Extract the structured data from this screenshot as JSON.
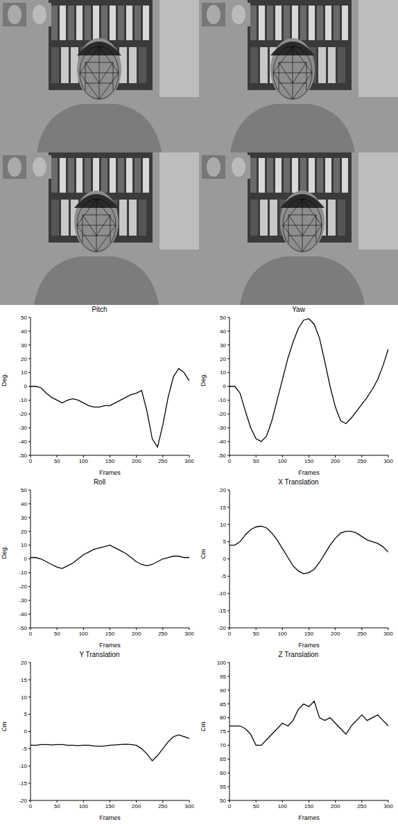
{
  "chart_data": [
    {
      "type": "line",
      "title": "Pitch",
      "x_label": "Frames",
      "y_label": "Deg.",
      "xlim": [
        0,
        300
      ],
      "xticks": [
        0,
        50,
        100,
        150,
        200,
        250,
        300
      ],
      "ylim": [
        -50,
        50
      ],
      "yticks": [
        -50,
        -40,
        -30,
        -20,
        -10,
        0,
        10,
        20,
        30,
        40,
        50
      ],
      "grid": false,
      "color": "#000000",
      "x": [
        0,
        10,
        20,
        30,
        40,
        50,
        60,
        70,
        80,
        90,
        100,
        110,
        120,
        130,
        140,
        150,
        160,
        170,
        180,
        190,
        200,
        210,
        220,
        230,
        240,
        250,
        260,
        270,
        280,
        290,
        300
      ],
      "values": [
        0,
        0,
        -1,
        -5,
        -8,
        -10,
        -12,
        -10,
        -9,
        -10,
        -12,
        -14,
        -15,
        -15,
        -14,
        -14,
        -12,
        -10,
        -8,
        -6,
        -5,
        -3,
        -18,
        -38,
        -44,
        -28,
        -8,
        7,
        13,
        10,
        4
      ]
    },
    {
      "type": "line",
      "title": "Yaw",
      "x_label": "Frames",
      "y_label": "Deg.",
      "xlim": [
        0,
        300
      ],
      "xticks": [
        0,
        50,
        100,
        150,
        200,
        250,
        300
      ],
      "ylim": [
        -50,
        50
      ],
      "yticks": [
        -50,
        -40,
        -30,
        -20,
        -10,
        0,
        10,
        20,
        30,
        40,
        50
      ],
      "grid": false,
      "color": "#000000",
      "x": [
        0,
        10,
        20,
        30,
        40,
        50,
        60,
        70,
        80,
        90,
        100,
        110,
        120,
        130,
        140,
        150,
        160,
        170,
        180,
        190,
        200,
        210,
        220,
        230,
        240,
        250,
        260,
        270,
        280,
        290,
        300
      ],
      "values": [
        0,
        0,
        -5,
        -18,
        -30,
        -38,
        -40,
        -36,
        -25,
        -10,
        5,
        20,
        32,
        42,
        48,
        49,
        45,
        35,
        18,
        0,
        -15,
        -25,
        -27,
        -23,
        -18,
        -13,
        -8,
        -2,
        5,
        15,
        27
      ]
    },
    {
      "type": "line",
      "title": "Roll",
      "x_label": "Frames",
      "y_label": "Deg.",
      "xlim": [
        0,
        300
      ],
      "xticks": [
        0,
        50,
        100,
        150,
        200,
        250,
        300
      ],
      "ylim": [
        -50,
        50
      ],
      "yticks": [
        -50,
        -40,
        -30,
        -20,
        -10,
        0,
        10,
        20,
        30,
        40,
        50
      ],
      "grid": false,
      "color": "#000000",
      "x": [
        0,
        10,
        20,
        30,
        40,
        50,
        60,
        70,
        80,
        90,
        100,
        110,
        120,
        130,
        140,
        150,
        160,
        170,
        180,
        190,
        200,
        210,
        220,
        230,
        240,
        250,
        260,
        270,
        280,
        290,
        300
      ],
      "values": [
        1,
        1,
        0,
        -2,
        -4,
        -6,
        -7,
        -5,
        -3,
        0,
        3,
        5,
        7,
        8,
        9,
        10,
        8,
        6,
        4,
        1,
        -2,
        -4,
        -5,
        -4,
        -2,
        0,
        1,
        2,
        2,
        1,
        1
      ]
    },
    {
      "type": "line",
      "title": "X Translation",
      "x_label": "Frames",
      "y_label": "Cm",
      "xlim": [
        0,
        300
      ],
      "xticks": [
        0,
        50,
        100,
        150,
        200,
        250,
        300
      ],
      "ylim": [
        -20,
        20
      ],
      "yticks": [
        -20,
        -15,
        -10,
        -5,
        0,
        5,
        10,
        15,
        20
      ],
      "grid": false,
      "color": "#000000",
      "x": [
        0,
        10,
        20,
        30,
        40,
        50,
        60,
        70,
        80,
        90,
        100,
        110,
        120,
        130,
        140,
        150,
        160,
        170,
        180,
        190,
        200,
        210,
        220,
        230,
        240,
        250,
        260,
        270,
        280,
        290,
        300
      ],
      "values": [
        4,
        4,
        5,
        7,
        8.5,
        9.3,
        9.5,
        9,
        7.5,
        5.5,
        3,
        0.5,
        -2,
        -3.5,
        -4.3,
        -4,
        -3,
        -1,
        1.5,
        4,
        6,
        7.5,
        8,
        8,
        7.5,
        6.5,
        5.5,
        5,
        4.5,
        3.5,
        2
      ]
    },
    {
      "type": "line",
      "title": "Y Translation",
      "x_label": "Frames",
      "y_label": "Cm",
      "xlim": [
        0,
        300
      ],
      "xticks": [
        0,
        50,
        100,
        150,
        200,
        250,
        300
      ],
      "ylim": [
        -20,
        20
      ],
      "yticks": [
        -20,
        -15,
        -10,
        -5,
        0,
        5,
        10,
        15,
        20
      ],
      "grid": false,
      "color": "#000000",
      "x": [
        0,
        10,
        20,
        30,
        40,
        50,
        60,
        70,
        80,
        90,
        100,
        110,
        120,
        130,
        140,
        150,
        160,
        170,
        180,
        190,
        200,
        210,
        220,
        230,
        240,
        250,
        260,
        270,
        280,
        290,
        300
      ],
      "values": [
        -4,
        -4,
        -3.8,
        -3.8,
        -3.9,
        -3.8,
        -3.8,
        -4,
        -4,
        -4.1,
        -4,
        -4,
        -4.2,
        -4.3,
        -4.2,
        -4,
        -3.9,
        -3.8,
        -3.7,
        -3.8,
        -4,
        -5,
        -6.5,
        -8.5,
        -7,
        -5,
        -3,
        -1.5,
        -1,
        -1.5,
        -2
      ]
    },
    {
      "type": "line",
      "title": "Z Translation",
      "x_label": "Frames",
      "y_label": "Cm",
      "xlim": [
        0,
        300
      ],
      "xticks": [
        0,
        50,
        100,
        150,
        200,
        250,
        300
      ],
      "ylim": [
        50,
        100
      ],
      "yticks": [
        50,
        55,
        60,
        65,
        70,
        75,
        80,
        85,
        90,
        95,
        100
      ],
      "grid": false,
      "color": "#000000",
      "x": [
        0,
        10,
        20,
        30,
        40,
        50,
        60,
        70,
        80,
        90,
        100,
        110,
        120,
        130,
        140,
        150,
        160,
        170,
        180,
        190,
        200,
        210,
        220,
        230,
        240,
        250,
        260,
        270,
        280,
        290,
        300
      ],
      "values": [
        77,
        77,
        77,
        76,
        74,
        70,
        70,
        72,
        74,
        76,
        78,
        77,
        79,
        83,
        85,
        84,
        86,
        80,
        79,
        80,
        78,
        76,
        74,
        77,
        79,
        81,
        79,
        80,
        81,
        79,
        77
      ]
    }
  ]
}
